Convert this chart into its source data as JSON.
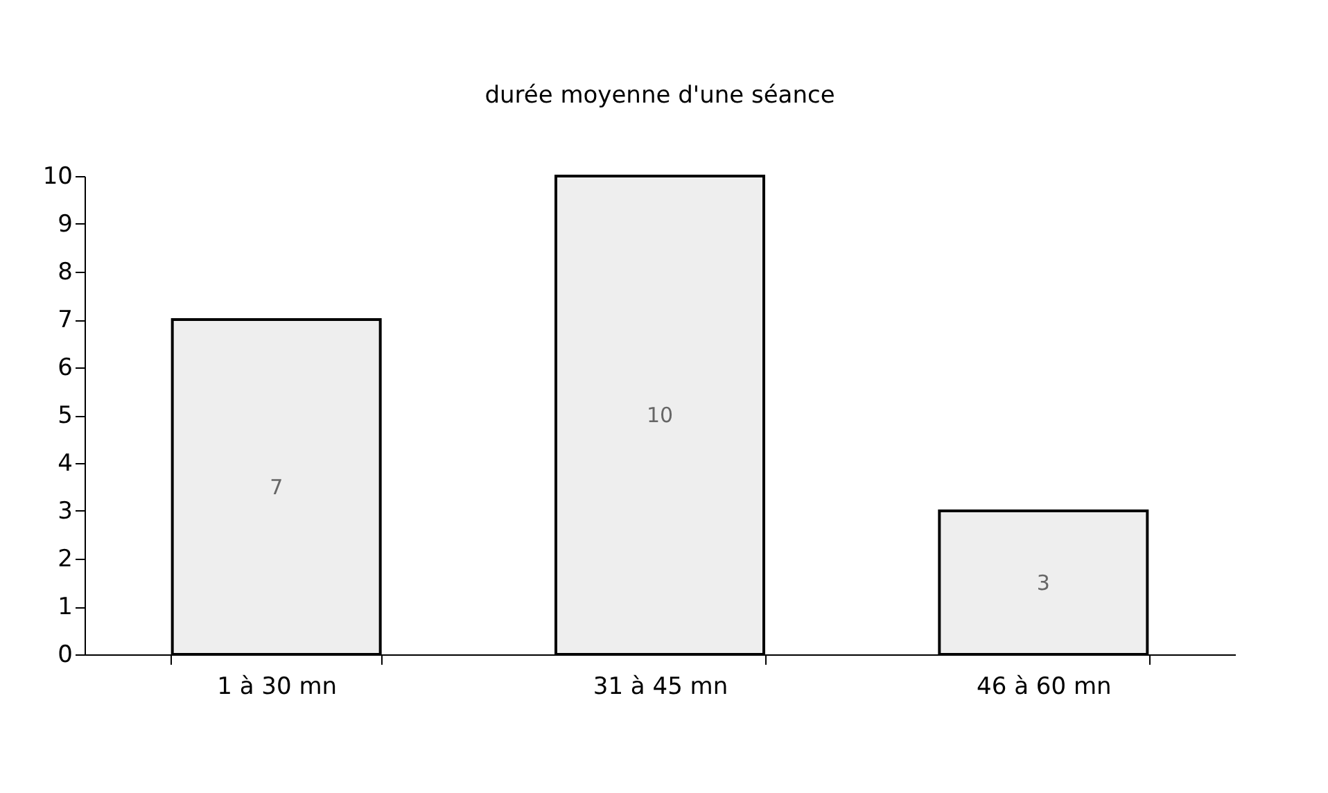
{
  "chart_data": {
    "type": "bar",
    "title": "durée moyenne d'une séance",
    "categories": [
      "1 à 30 mn",
      "31 à 45 mn",
      "46 à 60 mn"
    ],
    "values": [
      7,
      10,
      3
    ],
    "color": "#eeeeee",
    "ylim": [
      0,
      10
    ],
    "yticks": [
      0,
      1,
      2,
      3,
      4,
      5,
      6,
      7,
      8,
      9,
      10
    ],
    "data_labels": true,
    "grid": false
  }
}
